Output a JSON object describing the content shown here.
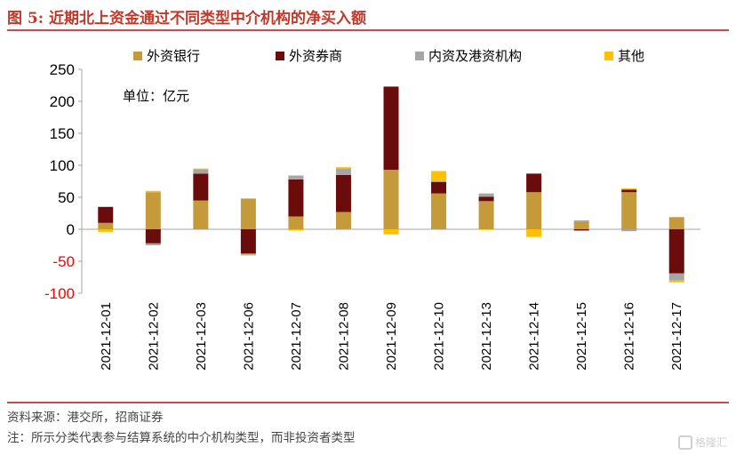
{
  "header": {
    "title": "图 5: 近期北上资金通过不同类型中介机构的净买入额"
  },
  "footer": {
    "source": "资料来源：港交所，招商证券",
    "note": "注：所示分类代表参与结算系统的中介机构类型，而非投资者类型"
  },
  "watermark": {
    "text": "格隆汇"
  },
  "colors": {
    "text": "#000000",
    "negative_tick": "#ff0000",
    "axis": "#a6a6a6"
  },
  "chart_data": {
    "type": "bar",
    "stacked": true,
    "unit_label": "单位：亿元",
    "categories": [
      "2021-12-01",
      "2021-12-02",
      "2021-12-03",
      "2021-12-06",
      "2021-12-07",
      "2021-12-08",
      "2021-12-09",
      "2021-12-10",
      "2021-12-13",
      "2021-12-14",
      "2021-12-15",
      "2021-12-16",
      "2021-12-17"
    ],
    "series": [
      {
        "name": "外资银行",
        "color": "#c49a3a",
        "values": [
          10,
          58,
          45,
          48,
          20,
          27,
          93,
          56,
          44,
          58,
          12,
          58,
          19
        ]
      },
      {
        "name": "外资券商",
        "color": "#6b0c0c",
        "values": [
          25,
          -22,
          42,
          -38,
          58,
          58,
          130,
          18,
          7,
          29,
          -2,
          4,
          -69
        ]
      },
      {
        "name": "内资及港资机构",
        "color": "#a6a6a6",
        "values": [
          0,
          -3,
          7,
          -2,
          6,
          10,
          0,
          1,
          5,
          0,
          2,
          -3,
          -11
        ]
      },
      {
        "name": "其他",
        "color": "#ffc000",
        "values": [
          -4,
          2,
          1,
          -1,
          -2,
          2,
          -8,
          16,
          -1,
          -12,
          0,
          2,
          -3
        ]
      }
    ],
    "y_ticks": [
      250,
      200,
      150,
      100,
      50,
      0,
      -50,
      -100
    ],
    "y_tick_labels": [
      "250",
      "200",
      "150",
      "100",
      "50",
      "0",
      "-50",
      "-100"
    ],
    "ylim": [
      -100,
      250
    ],
    "grid": false,
    "legend_position": "top"
  }
}
